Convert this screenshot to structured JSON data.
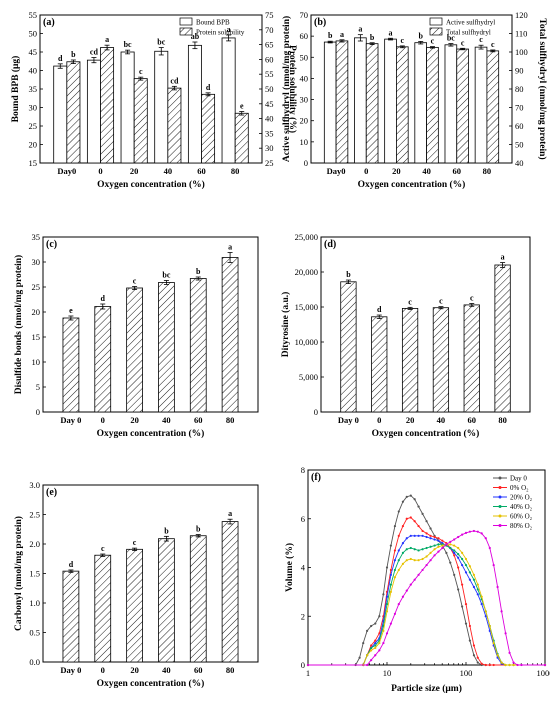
{
  "figure": {
    "panels": [
      {
        "id": "a",
        "label": "(a)"
      },
      {
        "id": "b",
        "label": "(b)"
      },
      {
        "id": "c",
        "label": "(c)"
      },
      {
        "id": "d",
        "label": "(d)"
      },
      {
        "id": "e",
        "label": "(e)"
      },
      {
        "id": "f",
        "label": "(f)"
      }
    ]
  },
  "colors": {
    "hatch": "#000000",
    "line_day0": "#555555",
    "line_0": "#ff2222",
    "line_20": "#2233ff",
    "line_40": "#00aa66",
    "line_60": "#e6c200",
    "line_80": "#dd00dd"
  },
  "chart_data": [
    {
      "id": "a",
      "type": "bar",
      "xlabel": "Oxygen concentration (%)",
      "categories": [
        "Day0",
        "0",
        "20",
        "40",
        "60",
        "80"
      ],
      "series": [
        {
          "name": "Bound BPB",
          "axis": "left",
          "fill": "white",
          "values": [
            41.2,
            42.8,
            45.0,
            45.2,
            46.8,
            48.8
          ],
          "errors": [
            0.6,
            0.7,
            0.5,
            1.0,
            0.9,
            0.8
          ],
          "labels": [
            "d",
            "cd",
            "bc",
            "bc",
            "ab",
            "a"
          ]
        },
        {
          "name": "Protein solubility",
          "axis": "right",
          "fill": "hatch",
          "values": [
            59.2,
            64.0,
            53.5,
            50.3,
            48.2,
            41.8
          ],
          "errors": [
            0.6,
            0.8,
            0.5,
            0.6,
            0.5,
            0.6
          ],
          "labels": [
            "b",
            "a",
            "c",
            "cd",
            "d",
            "e"
          ]
        }
      ],
      "ylabel": "Bound BPB (μg)",
      "ylim": [
        15,
        55
      ],
      "yticks": [
        15,
        20,
        25,
        30,
        35,
        40,
        45,
        50,
        55
      ],
      "y2label": "Protein solubility (%)",
      "y2lim": [
        25,
        75
      ],
      "y2ticks": [
        25,
        30,
        35,
        40,
        45,
        50,
        55,
        60,
        65,
        70,
        75
      ],
      "legend": "top-right"
    },
    {
      "id": "b",
      "type": "bar",
      "xlabel": "Oxygen concentration (%)",
      "categories": [
        "Day0",
        "0",
        "20",
        "40",
        "60",
        "80"
      ],
      "series": [
        {
          "name": "Active sulfhydryl",
          "axis": "left",
          "fill": "white",
          "values": [
            57.2,
            59.2,
            58.6,
            56.9,
            55.9,
            54.8
          ],
          "errors": [
            0.4,
            1.5,
            0.4,
            0.6,
            0.6,
            0.9
          ],
          "labels": [
            "b",
            "a",
            "a",
            "b",
            "bc",
            "c"
          ]
        },
        {
          "name": "Total sulfhydryl",
          "axis": "right",
          "fill": "hatch",
          "values": [
            106.0,
            104.5,
            102.8,
            102.5,
            101.6,
            100.6
          ],
          "errors": [
            0.6,
            0.5,
            0.5,
            0.4,
            0.4,
            0.5
          ],
          "labels": [
            "a",
            "b",
            "c",
            "c",
            "c",
            "c"
          ]
        }
      ],
      "ylabel": "Active sulfhydryl (nmol/mg protein)",
      "ylim": [
        0,
        70
      ],
      "yticks": [
        0,
        10,
        20,
        30,
        40,
        50,
        60,
        70
      ],
      "y2label": "Total sulfhydryl (nmol/mg protein)",
      "y2lim": [
        40,
        120
      ],
      "y2ticks": [
        40,
        50,
        60,
        70,
        80,
        90,
        100,
        110,
        120
      ],
      "legend": "top-right"
    },
    {
      "id": "c",
      "type": "bar",
      "xlabel": "Oxygen concentration (%)",
      "categories": [
        "Day 0",
        "0",
        "20",
        "40",
        "60",
        "80"
      ],
      "series": [
        {
          "fill": "hatch",
          "values": [
            18.8,
            21.1,
            24.8,
            25.9,
            26.7,
            30.9
          ],
          "errors": [
            0.4,
            0.5,
            0.3,
            0.4,
            0.3,
            1.0
          ],
          "labels": [
            "e",
            "d",
            "c",
            "bc",
            "b",
            "a"
          ]
        }
      ],
      "ylabel": "Disulfide bonds (nmol/mg protein)",
      "ylim": [
        0,
        35
      ],
      "yticks": [
        0,
        5,
        10,
        15,
        20,
        25,
        30,
        35
      ]
    },
    {
      "id": "d",
      "type": "bar",
      "xlabel": "Oxygen concentration (%)",
      "categories": [
        "Day 0",
        "0",
        "20",
        "40",
        "60",
        "80"
      ],
      "series": [
        {
          "fill": "hatch",
          "values": [
            18600,
            13600,
            14800,
            14900,
            15300,
            21000
          ],
          "errors": [
            250,
            250,
            150,
            150,
            200,
            350
          ],
          "labels": [
            "b",
            "d",
            "c",
            "c",
            "c",
            "a"
          ]
        }
      ],
      "ylabel": "Dityrosine (a.u.)",
      "ylim": [
        0,
        25000
      ],
      "yticks": [
        0,
        5000,
        10000,
        15000,
        20000,
        25000
      ],
      "ytick_labels": [
        "0",
        "5,000",
        "10,000",
        "15,000",
        "20,000",
        "25,000"
      ]
    },
    {
      "id": "e",
      "type": "bar",
      "xlabel": "Oxygen concentration (%)",
      "categories": [
        "Day 0",
        "0",
        "20",
        "40",
        "60",
        "80"
      ],
      "series": [
        {
          "fill": "hatch",
          "values": [
            1.54,
            1.81,
            1.91,
            2.09,
            2.14,
            2.38
          ],
          "errors": [
            0.02,
            0.02,
            0.02,
            0.04,
            0.02,
            0.04
          ],
          "labels": [
            "d",
            "c",
            "c",
            "b",
            "b",
            "a"
          ]
        }
      ],
      "ylabel": "Carbonyl (nmol/mg protein)",
      "ylim": [
        0,
        3.0
      ],
      "yticks": [
        0,
        0.5,
        1.0,
        1.5,
        2.0,
        2.5,
        3.0
      ],
      "ytick_labels": [
        "0.0",
        "0.5",
        "1.0",
        "1.5",
        "2.0",
        "2.5",
        "3.0"
      ]
    },
    {
      "id": "f",
      "type": "line",
      "xscale": "log",
      "xlabel": "Particle size (μm)",
      "ylabel": "Volume (%)",
      "xlim": [
        1,
        1000
      ],
      "xticks": [
        1,
        10,
        100,
        1000
      ],
      "ylim": [
        0,
        8
      ],
      "yticks": [
        0,
        2,
        4,
        6,
        8
      ],
      "legend": "top-right",
      "series": [
        {
          "name": "Day 0",
          "color_key": "line_day0",
          "marker": "square",
          "x": [
            1,
            4,
            4.5,
            5,
            5.6,
            6.3,
            7.1,
            8,
            9,
            10,
            11.2,
            12.6,
            14.1,
            15.9,
            17.8,
            20,
            22.4,
            25.1,
            28.2,
            31.7,
            35.6,
            40,
            44.8,
            50.2,
            56.4,
            63.2,
            70.9,
            79.6,
            89.3,
            100,
            112,
            126,
            141,
            158,
            178,
            200,
            1000
          ],
          "y": [
            0,
            0,
            0.3,
            0.9,
            1.4,
            1.6,
            1.7,
            2.0,
            2.9,
            4.0,
            4.9,
            5.7,
            6.3,
            6.7,
            6.9,
            6.95,
            6.8,
            6.5,
            6.2,
            5.9,
            5.6,
            5.3,
            5.1,
            4.9,
            4.6,
            4.2,
            3.7,
            3.1,
            2.4,
            1.7,
            1.0,
            0.4,
            0.1,
            0,
            0,
            0,
            0
          ]
        },
        {
          "name": "0% O₂",
          "color_key": "line_0",
          "marker": "circle",
          "x": [
            1,
            5,
            5.6,
            6.3,
            7.1,
            8,
            9,
            10,
            11.2,
            12.6,
            14.1,
            15.9,
            17.8,
            20,
            22.4,
            25.1,
            28.2,
            31.7,
            35.6,
            40,
            44.8,
            50.2,
            56.4,
            63.2,
            70.9,
            79.6,
            89.3,
            100,
            112,
            126,
            141,
            158,
            178,
            200,
            224,
            1000
          ],
          "y": [
            0,
            0,
            0.4,
            0.8,
            1.0,
            1.3,
            2.0,
            3.0,
            3.9,
            4.7,
            5.3,
            5.7,
            6.0,
            6.05,
            5.9,
            5.7,
            5.5,
            5.4,
            5.3,
            5.25,
            5.2,
            5.1,
            5.0,
            4.8,
            4.5,
            4.0,
            3.3,
            2.5,
            1.6,
            0.8,
            0.3,
            0.05,
            0,
            0,
            0,
            0
          ]
        },
        {
          "name": "20% O₂",
          "color_key": "line_20",
          "marker": "triangle",
          "x": [
            1,
            5,
            5.6,
            6.3,
            7.1,
            8,
            9,
            10,
            11.2,
            12.6,
            14.1,
            15.9,
            17.8,
            20,
            22.4,
            25.1,
            28.2,
            31.7,
            35.6,
            40,
            44.8,
            50.2,
            56.4,
            63.2,
            70.9,
            79.6,
            89.3,
            100,
            112,
            126,
            141,
            158,
            178,
            200,
            224,
            251,
            282,
            317,
            356,
            400,
            1000
          ],
          "y": [
            0,
            0,
            0.4,
            0.7,
            0.9,
            1.1,
            1.8,
            2.8,
            3.7,
            4.3,
            4.7,
            5.0,
            5.2,
            5.3,
            5.3,
            5.3,
            5.3,
            5.25,
            5.2,
            5.15,
            5.1,
            5.0,
            4.9,
            4.8,
            4.6,
            4.4,
            4.1,
            3.8,
            3.5,
            3.2,
            2.9,
            2.5,
            2.0,
            1.4,
            0.8,
            0.3,
            0.05,
            0,
            0,
            0,
            0
          ]
        },
        {
          "name": "40% O₂",
          "color_key": "line_40",
          "marker": "diamond",
          "x": [
            1,
            5,
            5.6,
            6.3,
            7.1,
            8,
            9,
            10,
            11.2,
            12.6,
            14.1,
            15.9,
            17.8,
            20,
            22.4,
            25.1,
            28.2,
            31.7,
            35.6,
            40,
            44.8,
            50.2,
            56.4,
            63.2,
            70.9,
            79.6,
            89.3,
            100,
            112,
            126,
            141,
            158,
            178,
            200,
            224,
            251,
            282,
            317,
            356,
            400,
            1000
          ],
          "y": [
            0,
            0,
            0.4,
            0.7,
            0.8,
            1.0,
            1.6,
            2.5,
            3.3,
            3.9,
            4.3,
            4.6,
            4.75,
            4.8,
            4.75,
            4.7,
            4.75,
            4.8,
            4.85,
            4.9,
            4.95,
            4.95,
            4.9,
            4.8,
            4.7,
            4.55,
            4.35,
            4.1,
            3.8,
            3.5,
            3.1,
            2.7,
            2.2,
            1.6,
            1.0,
            0.45,
            0.1,
            0,
            0,
            0,
            0
          ]
        },
        {
          "name": "60% O₂",
          "color_key": "line_60",
          "marker": "triangle-down",
          "x": [
            1,
            5,
            5.6,
            6.3,
            7.1,
            8,
            9,
            10,
            11.2,
            12.6,
            14.1,
            15.9,
            17.8,
            20,
            22.4,
            25.1,
            28.2,
            31.7,
            35.6,
            40,
            44.8,
            50.2,
            56.4,
            63.2,
            70.9,
            79.6,
            89.3,
            100,
            112,
            126,
            141,
            158,
            178,
            200,
            224,
            251,
            282,
            317,
            356,
            400,
            1000
          ],
          "y": [
            0,
            0,
            0.4,
            0.6,
            0.7,
            0.9,
            1.4,
            2.2,
            3.0,
            3.6,
            3.9,
            4.15,
            4.3,
            4.35,
            4.3,
            4.3,
            4.35,
            4.45,
            4.6,
            4.75,
            4.85,
            4.9,
            4.95,
            4.95,
            4.9,
            4.8,
            4.6,
            4.35,
            4.05,
            3.7,
            3.3,
            2.8,
            2.2,
            1.6,
            0.9,
            0.4,
            0.1,
            0,
            0,
            0,
            0
          ]
        },
        {
          "name": "80% O₂",
          "color_key": "line_80",
          "marker": "pentagon",
          "x": [
            1,
            5.6,
            6.3,
            7.1,
            8,
            9,
            10,
            11.2,
            12.6,
            14.1,
            15.9,
            17.8,
            20,
            22.4,
            25.1,
            28.2,
            31.7,
            35.6,
            40,
            44.8,
            50.2,
            56.4,
            63.2,
            70.9,
            79.6,
            89.3,
            100,
            112,
            126,
            141,
            158,
            178,
            200,
            224,
            251,
            282,
            317,
            356,
            400,
            449,
            504,
            1000
          ],
          "y": [
            0,
            0,
            0.2,
            0.4,
            0.6,
            0.9,
            1.3,
            1.7,
            2.1,
            2.5,
            2.8,
            3.05,
            3.3,
            3.5,
            3.7,
            3.9,
            4.1,
            4.3,
            4.5,
            4.65,
            4.8,
            4.95,
            5.05,
            5.15,
            5.25,
            5.35,
            5.42,
            5.47,
            5.5,
            5.47,
            5.4,
            5.2,
            4.8,
            4.1,
            3.2,
            2.2,
            1.3,
            0.5,
            0.1,
            0,
            0,
            0
          ]
        }
      ]
    }
  ]
}
